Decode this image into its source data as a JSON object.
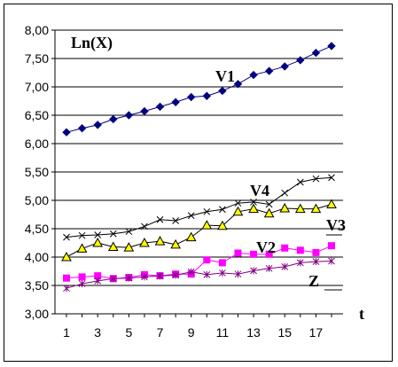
{
  "chart_data": {
    "type": "line",
    "title": "Ln(X)",
    "xlabel": "t",
    "ylabel": "",
    "ylim": [
      3.0,
      8.0
    ],
    "xlim": [
      1,
      18
    ],
    "y_ticks": [
      "3,00",
      "3,50",
      "4,00",
      "4,50",
      "5,00",
      "5,50",
      "6,00",
      "6,50",
      "7,00",
      "7,50",
      "8,00"
    ],
    "x_ticks": [
      "1",
      "3",
      "5",
      "7",
      "9",
      "11",
      "13",
      "15",
      "17"
    ],
    "grid": "horizontal",
    "x": [
      1,
      2,
      3,
      4,
      5,
      6,
      7,
      8,
      9,
      10,
      11,
      12,
      13,
      14,
      15,
      16,
      17,
      18
    ],
    "series": [
      {
        "name": "V1",
        "color": "#000080",
        "marker": "diamond",
        "values": [
          6.2,
          6.27,
          6.33,
          6.43,
          6.5,
          6.57,
          6.65,
          6.73,
          6.82,
          6.84,
          6.93,
          7.05,
          7.21,
          7.28,
          7.36,
          7.47,
          7.6,
          7.72
        ]
      },
      {
        "name": "V4",
        "color": "#000000",
        "marker": "x",
        "values": [
          4.35,
          4.38,
          4.39,
          4.41,
          4.45,
          4.54,
          4.66,
          4.64,
          4.73,
          4.8,
          4.84,
          4.95,
          4.97,
          4.93,
          5.13,
          5.32,
          5.38,
          5.4
        ]
      },
      {
        "name": "V3",
        "color": "#000000",
        "marker_fill": "#ffff00",
        "marker": "triangle",
        "values": [
          4.0,
          4.15,
          4.25,
          4.18,
          4.17,
          4.25,
          4.28,
          4.22,
          4.35,
          4.56,
          4.55,
          4.8,
          4.85,
          4.77,
          4.86,
          4.85,
          4.85,
          4.93
        ]
      },
      {
        "name": "V2",
        "color": "#ff00ff",
        "marker": "square",
        "values": [
          3.63,
          3.65,
          3.67,
          3.62,
          3.64,
          3.69,
          3.67,
          3.7,
          3.7,
          3.95,
          3.9,
          4.07,
          4.05,
          4.05,
          4.16,
          4.12,
          4.08,
          4.2
        ]
      },
      {
        "name": "Z",
        "color": "#800080",
        "marker": "star",
        "values": [
          3.45,
          3.53,
          3.58,
          3.62,
          3.63,
          3.65,
          3.67,
          3.68,
          3.74,
          3.69,
          3.72,
          3.7,
          3.76,
          3.8,
          3.83,
          3.9,
          3.92,
          3.93
        ]
      }
    ]
  }
}
